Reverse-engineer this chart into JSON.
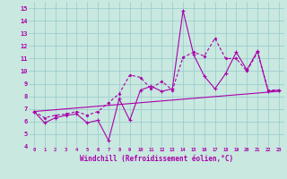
{
  "xlabel": "Windchill (Refroidissement éolien,°C)",
  "xlim": [
    -0.5,
    23.5
  ],
  "ylim": [
    4,
    15.5
  ],
  "xticks": [
    0,
    1,
    2,
    3,
    4,
    5,
    6,
    7,
    8,
    9,
    10,
    11,
    12,
    13,
    14,
    15,
    16,
    17,
    18,
    19,
    20,
    21,
    22,
    23
  ],
  "yticks": [
    4,
    5,
    6,
    7,
    8,
    9,
    10,
    11,
    12,
    13,
    14,
    15
  ],
  "background_color": "#c8e8e0",
  "line_color": "#aa00aa",
  "grid_color": "#9ecece",
  "series1_x": [
    0,
    1,
    2,
    3,
    4,
    5,
    6,
    7,
    8,
    9,
    10,
    11,
    12,
    13,
    14,
    15,
    16,
    17,
    18,
    19,
    20,
    21,
    22,
    23
  ],
  "series1_y": [
    6.8,
    5.9,
    6.3,
    6.5,
    6.6,
    5.9,
    6.1,
    4.5,
    7.8,
    6.1,
    8.5,
    8.8,
    8.4,
    8.6,
    14.8,
    11.3,
    9.6,
    8.6,
    9.8,
    11.5,
    10.1,
    11.6,
    8.4,
    8.5
  ],
  "series2_x": [
    0,
    1,
    2,
    3,
    4,
    5,
    6,
    7,
    8,
    9,
    10,
    11,
    12,
    13,
    14,
    15,
    16,
    17,
    18,
    19,
    20,
    21,
    22,
    23
  ],
  "series2_y": [
    6.8,
    6.3,
    6.5,
    6.6,
    6.8,
    6.5,
    6.8,
    7.5,
    8.2,
    9.7,
    9.5,
    8.6,
    9.2,
    8.5,
    11.1,
    11.5,
    11.2,
    12.6,
    11.0,
    11.0,
    10.0,
    11.5,
    8.5,
    8.5
  ],
  "series3_x": [
    0,
    23
  ],
  "series3_y": [
    6.8,
    8.4
  ]
}
